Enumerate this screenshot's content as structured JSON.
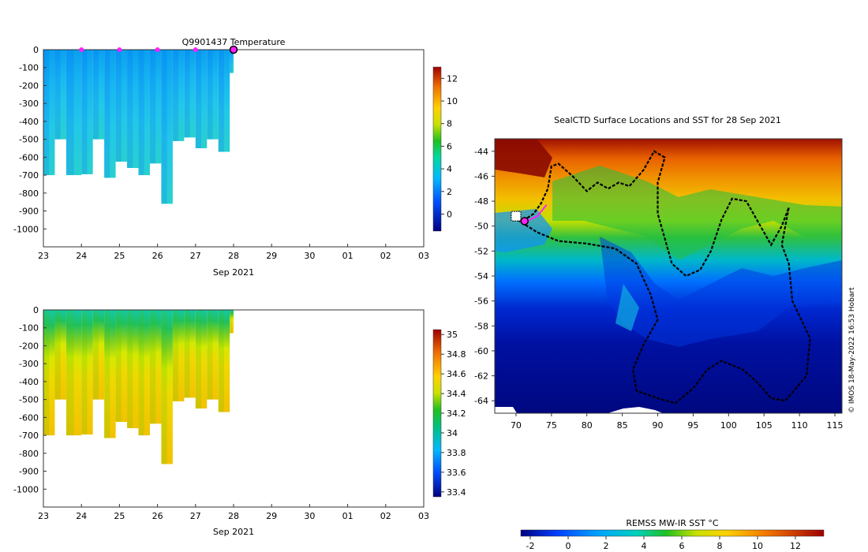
{
  "chart_data": [
    {
      "id": "temperature",
      "type": "heatmap",
      "title": "Q9901437  Temperature",
      "xlabel": "Sep 2021",
      "xticks": [
        "23",
        "24",
        "25",
        "26",
        "27",
        "28",
        "29",
        "30",
        "01",
        "02",
        "03"
      ],
      "xlim_day": [
        23,
        33
      ],
      "yticks": [
        0,
        -100,
        -200,
        -300,
        -400,
        -500,
        -600,
        -700,
        -800,
        -900,
        -1000
      ],
      "ylim": [
        -1100,
        0
      ],
      "colorbar": {
        "ticks": [
          12,
          10,
          8,
          6,
          4,
          2,
          0
        ],
        "range": [
          -1.5,
          13
        ]
      },
      "dive_days": [
        23.0,
        23.3,
        23.6,
        24.0,
        24.3,
        24.6,
        24.9,
        25.2,
        25.5,
        25.8,
        26.1,
        26.4,
        26.7,
        27.0,
        27.3,
        27.6,
        27.9
      ],
      "dive_depth": [
        700,
        500,
        700,
        695,
        500,
        715,
        625,
        660,
        700,
        635,
        860,
        510,
        490,
        550,
        500,
        570,
        130
      ],
      "surface_markers_day": [
        24.0,
        25.0,
        26.0,
        27.0
      ],
      "last_position_day": 28.0
    },
    {
      "id": "salinity",
      "type": "heatmap",
      "title": "",
      "xlabel": "Sep 2021",
      "xticks": [
        "23",
        "24",
        "25",
        "26",
        "27",
        "28",
        "29",
        "30",
        "01",
        "02",
        "03"
      ],
      "xlim_day": [
        23,
        33
      ],
      "yticks": [
        0,
        -100,
        -200,
        -300,
        -400,
        -500,
        -600,
        -700,
        -800,
        -900,
        -1000
      ],
      "ylim": [
        -1100,
        0
      ],
      "colorbar": {
        "ticks": [
          35,
          34.8,
          34.6,
          34.4,
          34.2,
          34,
          33.8,
          33.6,
          33.4
        ],
        "range": [
          33.35,
          35.05
        ]
      }
    },
    {
      "id": "sst_map",
      "type": "map",
      "title": "SealCTD Surface Locations and SST for 28 Sep 2021",
      "lon_ticks": [
        70,
        75,
        80,
        85,
        90,
        95,
        100,
        105,
        110,
        115
      ],
      "lat_ticks": [
        -44,
        -46,
        -48,
        -50,
        -52,
        -54,
        -56,
        -58,
        -60,
        -62,
        -64
      ],
      "lon_range": [
        67,
        116
      ],
      "lat_range": [
        -65,
        -43
      ],
      "colorbar": {
        "label": "REMSS MW-IR SST °C",
        "ticks": [
          -2,
          0,
          2,
          4,
          6,
          8,
          10,
          12
        ],
        "range": [
          -2.5,
          13.5
        ]
      },
      "track": [
        [
          70.2,
          -49.5
        ],
        [
          73,
          -50.5
        ],
        [
          76,
          -51.2
        ],
        [
          80,
          -51.4
        ],
        [
          84,
          -51.8
        ],
        [
          87,
          -53
        ],
        [
          89,
          -55.5
        ],
        [
          90,
          -57.5
        ],
        [
          88,
          -59.5
        ],
        [
          86.5,
          -61.5
        ],
        [
          87,
          -63.2
        ],
        [
          90,
          -63.8
        ],
        [
          92.5,
          -64.2
        ],
        [
          95,
          -63
        ],
        [
          97,
          -61.5
        ],
        [
          99,
          -60.8
        ],
        [
          102,
          -61.5
        ],
        [
          104,
          -62.5
        ],
        [
          106,
          -63.8
        ],
        [
          108,
          -64
        ],
        [
          111,
          -62
        ],
        [
          111.5,
          -59
        ],
        [
          109,
          -56
        ],
        [
          108.5,
          -53
        ],
        [
          107.5,
          -51.5
        ],
        [
          108.5,
          -48.5
        ],
        [
          107.5,
          -50
        ],
        [
          106,
          -51.5
        ],
        [
          104,
          -49.5
        ],
        [
          102.5,
          -48
        ],
        [
          100.5,
          -47.8
        ],
        [
          99,
          -49.5
        ],
        [
          97.5,
          -52
        ],
        [
          96,
          -53.5
        ],
        [
          94,
          -54
        ],
        [
          92,
          -53
        ],
        [
          91,
          -51
        ],
        [
          90,
          -49
        ],
        [
          90,
          -46.5
        ],
        [
          91,
          -44.5
        ],
        [
          89.5,
          -44
        ],
        [
          88,
          -45.5
        ],
        [
          86,
          -46.8
        ],
        [
          84.5,
          -46.5
        ],
        [
          83,
          -47
        ],
        [
          81.5,
          -46.5
        ],
        [
          80,
          -47.2
        ],
        [
          78,
          -46
        ],
        [
          76,
          -45
        ],
        [
          75,
          -45.2
        ],
        [
          74.5,
          -47
        ],
        [
          73.5,
          -48.2
        ],
        [
          72.5,
          -49
        ],
        [
          71.2,
          -49.5
        ]
      ],
      "recent_track": [
        [
          70.2,
          -49.5
        ],
        [
          71.5,
          -49.6
        ],
        [
          73,
          -49.2
        ],
        [
          74.3,
          -48.3
        ]
      ],
      "last_position": [
        71.2,
        -49.6
      ]
    }
  ],
  "credit": "© IMOS 18-May-2022 16:53 Hobart"
}
